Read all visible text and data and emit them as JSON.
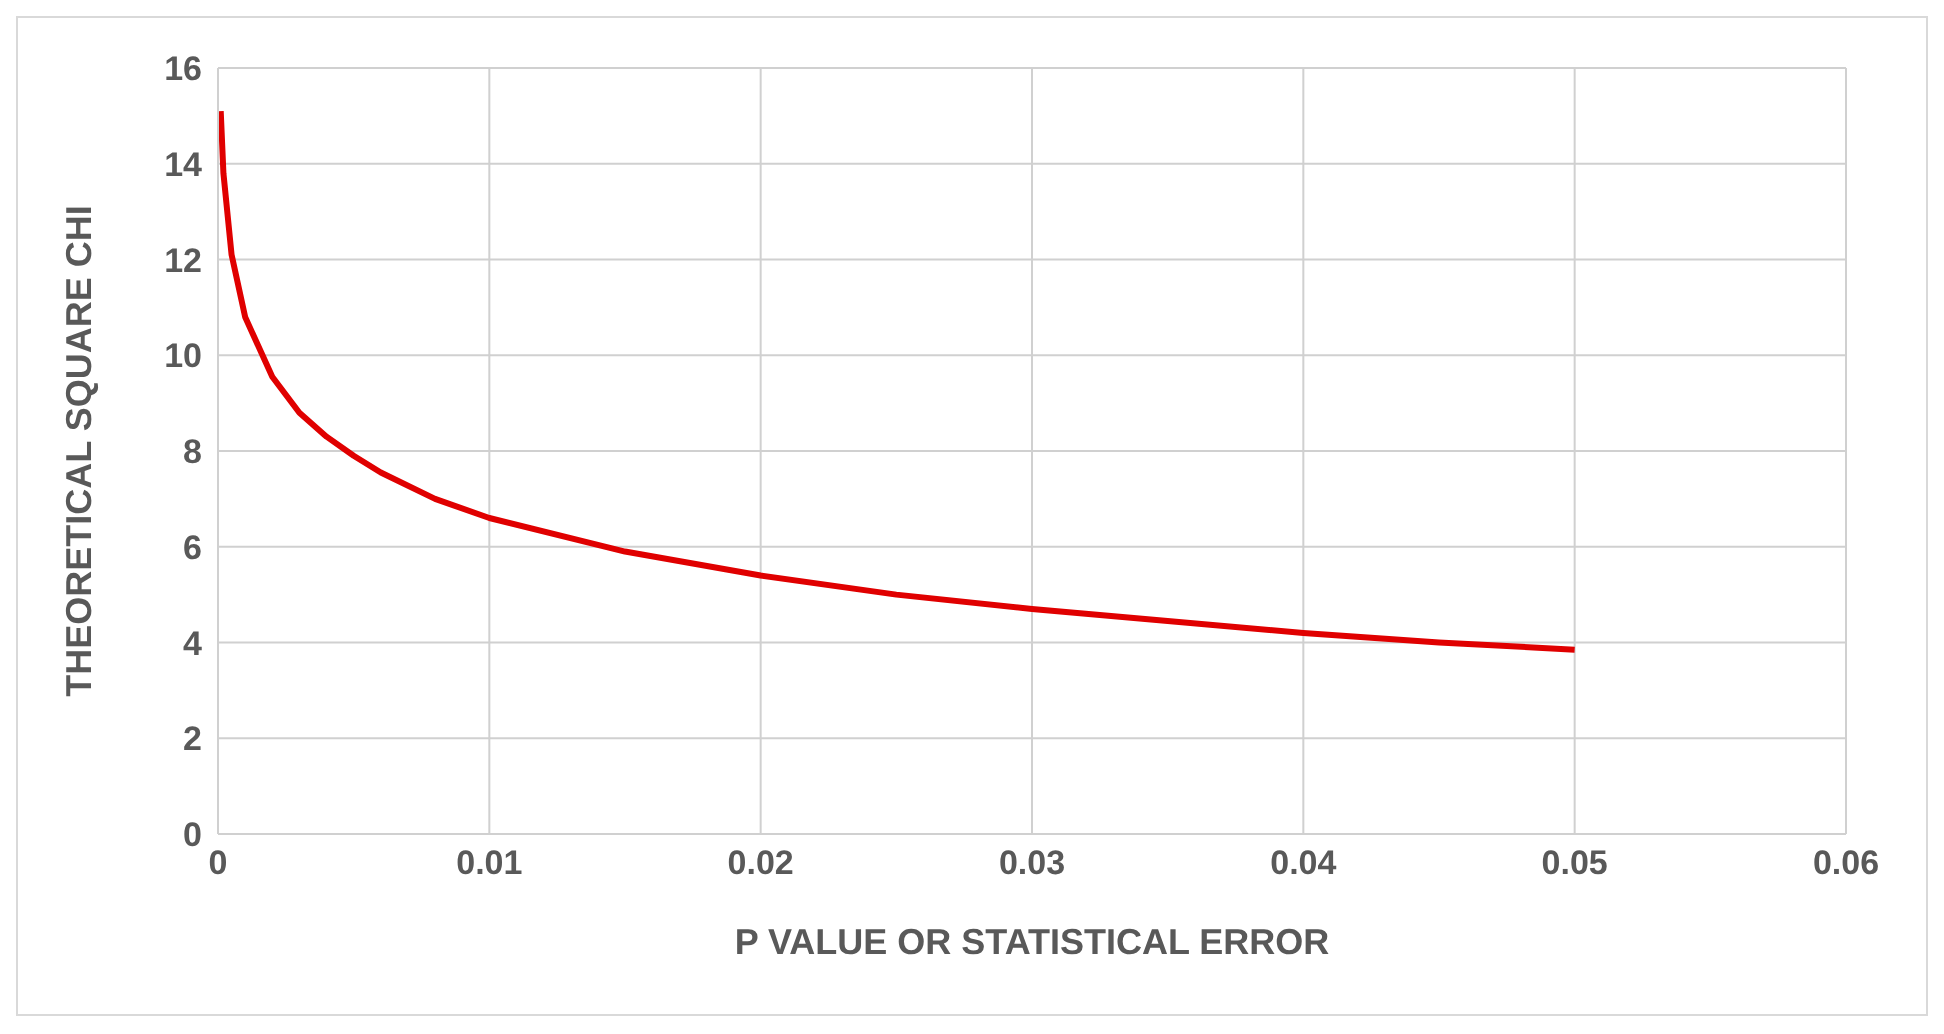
{
  "chart_data": {
    "type": "line",
    "xlabel": "P VALUE OR STATISTICAL ERROR",
    "ylabel": "THEORETICAL SQUARE CHI",
    "x": [
      0.0001,
      0.0002,
      0.0005,
      0.001,
      0.002,
      0.003,
      0.004,
      0.005,
      0.006,
      0.008,
      0.01,
      0.015,
      0.02,
      0.025,
      0.03,
      0.035,
      0.04,
      0.045,
      0.05
    ],
    "series": [
      {
        "color": "#e00000",
        "values": [
          15.1,
          13.8,
          12.1,
          10.8,
          9.55,
          8.8,
          8.3,
          7.9,
          7.55,
          7.0,
          6.6,
          5.9,
          5.4,
          5.0,
          4.7,
          4.45,
          4.2,
          4.0,
          3.85
        ]
      }
    ],
    "xlim": [
      0,
      0.06
    ],
    "xticks": [
      0,
      0.01,
      0.02,
      0.03,
      0.04,
      0.05,
      0.06
    ],
    "ylim": [
      0,
      16
    ],
    "yticks": [
      0,
      2,
      4,
      6,
      8,
      10,
      12,
      14,
      16
    ],
    "grid": true,
    "legend": false,
    "marker": "none",
    "line_style": "solid"
  }
}
